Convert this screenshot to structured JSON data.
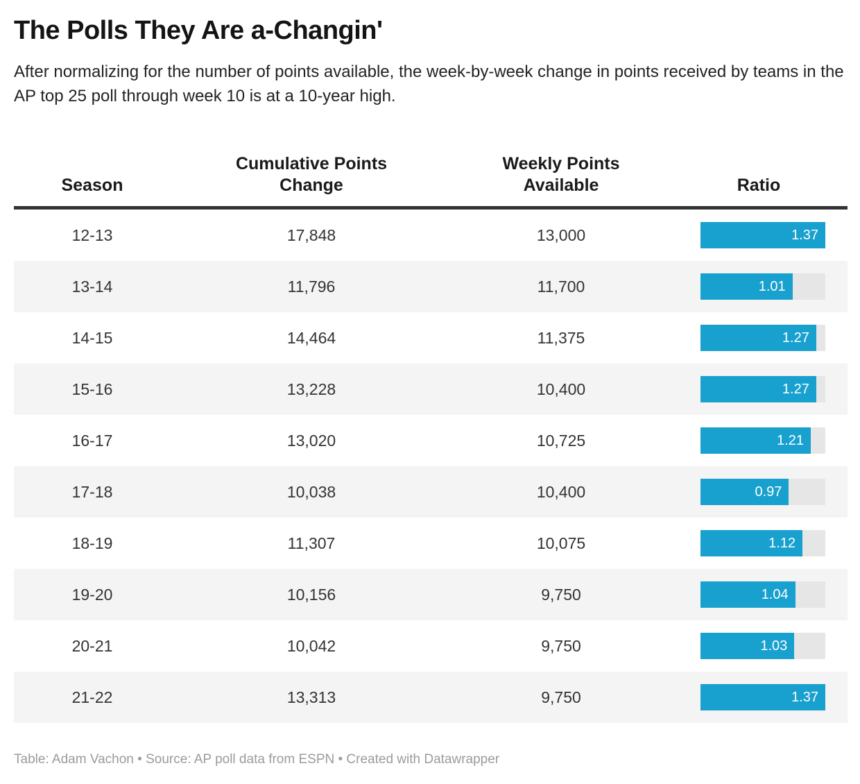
{
  "title": "The Polls They Are a-Changin'",
  "description": "After normalizing for the number of points available, the week-by-week change in points received by teams in the AP top 25 poll through week 10 is at a 10-year high.",
  "table": {
    "columns": [
      "Season",
      "Cumulative Points Change",
      "Weekly Points Available",
      "Ratio"
    ]
  },
  "footer": "Table: Adam Vachon • Source: AP poll data from ESPN • Created with Datawrapper",
  "colors": {
    "bar": "#18a0ce",
    "bar_track": "#e6e6e6",
    "row_stripe": "#f4f4f4",
    "header_rule": "#333333",
    "title_text": "#141414",
    "cell_text": "#333333",
    "footer_text": "#9b9b9b"
  },
  "chart_data": {
    "type": "table",
    "title": "The Polls They Are a-Changin'",
    "subtitle": "After normalizing for the number of points available, the week-by-week change in points received by teams in the AP top 25 poll through week 10 is at a 10-year high.",
    "columns": [
      "Season",
      "Cumulative Points Change",
      "Weekly Points Available",
      "Ratio"
    ],
    "rows": [
      [
        "12-13",
        "17,848",
        "13,000",
        1.37
      ],
      [
        "13-14",
        "11,796",
        "11,700",
        1.01
      ],
      [
        "14-15",
        "14,464",
        "11,375",
        1.27
      ],
      [
        "15-16",
        "13,228",
        "10,400",
        1.27
      ],
      [
        "16-17",
        "13,020",
        "10,725",
        1.21
      ],
      [
        "17-18",
        "10,038",
        "10,400",
        0.97
      ],
      [
        "18-19",
        "11,307",
        "10,075",
        1.12
      ],
      [
        "19-20",
        "10,156",
        "9,750",
        1.04
      ],
      [
        "20-21",
        "10,042",
        "9,750",
        1.03
      ],
      [
        "21-22",
        "13,313",
        "9,750",
        1.37
      ]
    ],
    "ratio_bar": {
      "axis_min": 0,
      "axis_max": 1.37,
      "value_labels": "inside-right"
    },
    "stripe_pattern": "even rows white, odd rows light gray",
    "legend": "none"
  }
}
